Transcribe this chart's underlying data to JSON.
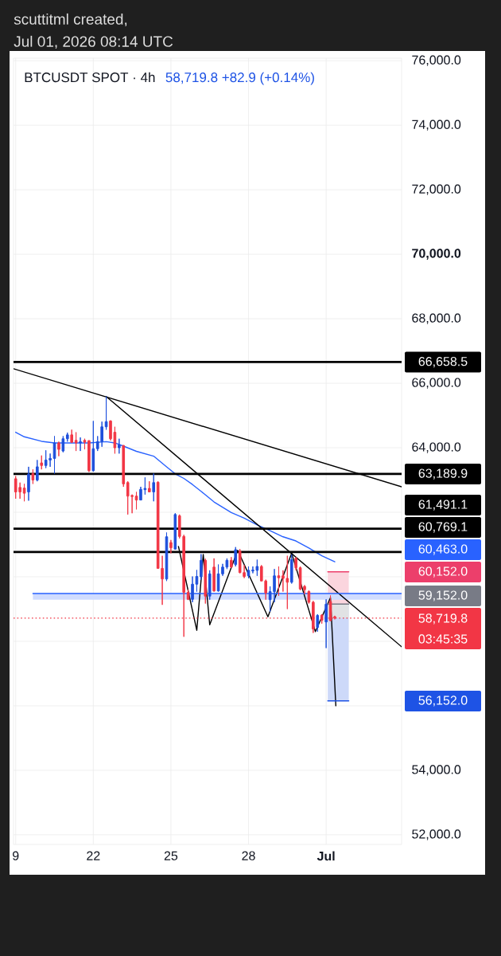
{
  "chart_data": {
    "type": "candlestick",
    "title": "BTCUSDT SPOT · 4h",
    "subtitle": "58,719.8 +82.9 (+0.14%)",
    "x": [
      "2026-06-19T00:00",
      "2026-06-19T04:00",
      "2026-06-19T08:00",
      "2026-06-19T12:00",
      "2026-06-19T16:00",
      "2026-06-19T20:00",
      "2026-06-20T00:00",
      "2026-06-20T04:00",
      "2026-06-20T08:00",
      "2026-06-20T12:00",
      "2026-06-20T16:00",
      "2026-06-20T20:00",
      "2026-06-21T00:00",
      "2026-06-21T04:00",
      "2026-06-21T08:00",
      "2026-06-21T12:00",
      "2026-06-21T16:00",
      "2026-06-21T20:00",
      "2026-06-22T00:00",
      "2026-06-22T04:00",
      "2026-06-22T08:00",
      "2026-06-22T12:00",
      "2026-06-22T16:00",
      "2026-06-22T20:00",
      "2026-06-23T00:00",
      "2026-06-23T04:00",
      "2026-06-23T08:00",
      "2026-06-23T12:00",
      "2026-06-23T16:00",
      "2026-06-23T20:00",
      "2026-06-24T00:00",
      "2026-06-24T04:00",
      "2026-06-24T08:00",
      "2026-06-24T12:00",
      "2026-06-24T16:00",
      "2026-06-24T20:00",
      "2026-06-25T00:00",
      "2026-06-25T04:00",
      "2026-06-25T08:00",
      "2026-06-25T12:00",
      "2026-06-25T16:00",
      "2026-06-25T20:00",
      "2026-06-26T00:00",
      "2026-06-26T04:00",
      "2026-06-26T08:00",
      "2026-06-26T12:00",
      "2026-06-26T16:00",
      "2026-06-26T20:00",
      "2026-06-27T00:00",
      "2026-06-27T04:00",
      "2026-06-27T08:00",
      "2026-06-27T12:00",
      "2026-06-27T16:00",
      "2026-06-27T20:00",
      "2026-06-28T00:00",
      "2026-06-28T04:00",
      "2026-06-28T08:00",
      "2026-06-28T12:00",
      "2026-06-28T16:00",
      "2026-06-28T20:00",
      "2026-06-29T00:00",
      "2026-06-29T04:00",
      "2026-06-29T08:00",
      "2026-06-29T12:00",
      "2026-06-29T16:00",
      "2026-06-29T20:00",
      "2026-06-30T00:00",
      "2026-06-30T04:00",
      "2026-06-30T08:00",
      "2026-06-30T12:00",
      "2026-06-30T16:00",
      "2026-06-30T20:00",
      "2026-07-01T00:00",
      "2026-07-01T04:00",
      "2026-07-01T08:00"
    ],
    "ohlc": [
      [
        63040,
        63120,
        62420,
        62630
      ],
      [
        62770,
        62920,
        62420,
        62630
      ],
      [
        62750,
        62880,
        62340,
        62590
      ],
      [
        62630,
        63410,
        62360,
        63180
      ],
      [
        63200,
        63330,
        62880,
        63000
      ],
      [
        63000,
        63620,
        62960,
        63410
      ],
      [
        63530,
        63760,
        63330,
        63450
      ],
      [
        63450,
        63920,
        63370,
        63620
      ],
      [
        63620,
        63820,
        63410,
        63670
      ],
      [
        63670,
        64360,
        63200,
        64150
      ],
      [
        64150,
        64190,
        63740,
        63950
      ],
      [
        63900,
        64360,
        63860,
        64280
      ],
      [
        64280,
        64470,
        64190,
        64400
      ],
      [
        64400,
        64560,
        64150,
        64170
      ],
      [
        64230,
        64480,
        63900,
        64150
      ],
      [
        64150,
        64320,
        63900,
        64190
      ],
      [
        64230,
        64280,
        63950,
        64170
      ],
      [
        64220,
        64230,
        63250,
        63290
      ],
      [
        63290,
        64830,
        63260,
        63970
      ],
      [
        63970,
        64360,
        63900,
        64190
      ],
      [
        64190,
        64810,
        64030,
        64650
      ],
      [
        64650,
        65590,
        64560,
        64810
      ],
      [
        64830,
        64850,
        64230,
        64280
      ],
      [
        64480,
        64650,
        63820,
        64000
      ],
      [
        64000,
        64280,
        63820,
        64090
      ],
      [
        64070,
        64080,
        62790,
        62880
      ],
      [
        62920,
        62960,
        61930,
        62500
      ],
      [
        62520,
        62550,
        61970,
        62490
      ],
      [
        62500,
        62630,
        62090,
        62380
      ],
      [
        62380,
        62790,
        62370,
        62710
      ],
      [
        62700,
        63080,
        62550,
        62740
      ],
      [
        62740,
        62960,
        62620,
        62630
      ],
      [
        62630,
        63200,
        62340,
        62920
      ],
      [
        62930,
        62960,
        60250,
        60260
      ],
      [
        60260,
        60650,
        59130,
        59930
      ],
      [
        59930,
        61370,
        59870,
        61240
      ],
      [
        61060,
        61140,
        60730,
        60900
      ],
      [
        60860,
        61970,
        60840,
        61930
      ],
      [
        61890,
        61930,
        61190,
        61250
      ],
      [
        61250,
        61300,
        58140,
        59520
      ],
      [
        59520,
        59600,
        59280,
        59300
      ],
      [
        59300,
        60010,
        59210,
        59770
      ],
      [
        59770,
        60210,
        59540,
        60010
      ],
      [
        60000,
        60700,
        59910,
        60510
      ],
      [
        60510,
        60560,
        59170,
        59400
      ],
      [
        59400,
        60200,
        59290,
        60090
      ],
      [
        60300,
        60570,
        59540,
        59560
      ],
      [
        59560,
        60380,
        59540,
        60090
      ],
      [
        60090,
        60400,
        60030,
        60300
      ],
      [
        60300,
        60570,
        60240,
        60510
      ],
      [
        60510,
        60610,
        60280,
        60300
      ],
      [
        60380,
        60920,
        60320,
        60840
      ],
      [
        60800,
        60860,
        60110,
        60130
      ],
      [
        60130,
        60360,
        59960,
        60010
      ],
      [
        60030,
        60320,
        59950,
        60200
      ],
      [
        60180,
        60320,
        60110,
        60210
      ],
      [
        60200,
        60530,
        60030,
        60320
      ],
      [
        60320,
        60360,
        59860,
        59870
      ],
      [
        59870,
        59910,
        59290,
        59500
      ],
      [
        59290,
        59700,
        58920,
        59540
      ],
      [
        59540,
        60240,
        59210,
        60030
      ],
      [
        60030,
        60320,
        59410,
        59970
      ],
      [
        60030,
        60200,
        59540,
        59950
      ],
      [
        59950,
        60650,
        59000,
        59830
      ],
      [
        59830,
        60690,
        59790,
        60530
      ],
      [
        60570,
        60610,
        60200,
        60280
      ],
      [
        60280,
        60320,
        59580,
        59620
      ],
      [
        59700,
        59740,
        59460,
        59600
      ],
      [
        59540,
        59580,
        59170,
        59210
      ],
      [
        59210,
        59250,
        58260,
        58380
      ],
      [
        58430,
        58840,
        58300,
        58800
      ],
      [
        58810,
        58840,
        58550,
        58650
      ],
      [
        58600,
        59300,
        57790,
        59150
      ],
      [
        59230,
        59420,
        58630,
        58640
      ],
      [
        58760,
        58790,
        58680,
        58719.8
      ]
    ],
    "colors": [
      "#f23645",
      "#f23645",
      "#f23645",
      "#1e50dc",
      "#f23645",
      "#1e50dc",
      "#f23645",
      "#1e50dc",
      "#1e50dc",
      "#1e50dc",
      "#f23645",
      "#1e50dc",
      "#1e50dc",
      "#f23645",
      "#f23645",
      "#1e50dc",
      "#f23645",
      "#f23645",
      "#1e50dc",
      "#1e50dc",
      "#1e50dc",
      "#1e50dc",
      "#f23645",
      "#f23645",
      "#1e50dc",
      "#f23645",
      "#f23645",
      "#f23645",
      "#f23645",
      "#1e50dc",
      "#1e50dc",
      "#f23645",
      "#1e50dc",
      "#f23645",
      "#f23645",
      "#1e50dc",
      "#f23645",
      "#1e50dc",
      "#f23645",
      "#f23645",
      "#f23645",
      "#1e50dc",
      "#1e50dc",
      "#1e50dc",
      "#f23645",
      "#1e50dc",
      "#f23645",
      "#1e50dc",
      "#1e50dc",
      "#1e50dc",
      "#f23645",
      "#1e50dc",
      "#f23645",
      "#f23645",
      "#1e50dc",
      "#1e50dc",
      "#1e50dc",
      "#f23645",
      "#f23645",
      "#1e50dc",
      "#1e50dc",
      "#f23645",
      "#f23645",
      "#f23645",
      "#1e50dc",
      "#f23645",
      "#f23645",
      "#f23645",
      "#f23645",
      "#f23645",
      "#1e50dc",
      "#f23645",
      "#1e50dc",
      "#f23645",
      "#f23645"
    ],
    "series": [
      {
        "type": "line",
        "color": "#2962ff",
        "x": [
          "2026-06-19T00:00",
          "2026-06-19T08:00",
          "2026-06-20T00:00",
          "2026-06-20T12:00",
          "2026-06-21T08:00",
          "2026-06-21T20:00",
          "2026-06-22T12:00",
          "2026-06-22T20:00",
          "2026-06-23T04:00",
          "2026-06-23T16:00",
          "2026-06-24T08:00",
          "2026-06-24T20:00",
          "2026-06-25T04:00",
          "2026-06-25T12:00",
          "2026-06-25T20:00",
          "2026-06-26T04:00",
          "2026-06-26T16:00",
          "2026-06-27T08:00",
          "2026-06-27T20:00",
          "2026-06-28T08:00",
          "2026-06-28T20:00",
          "2026-06-29T08:00",
          "2026-06-29T20:00",
          "2026-06-30T08:00",
          "2026-06-30T20:00",
          "2026-07-01T08:00"
        ],
        "values": [
          64480,
          64340,
          64200,
          64150,
          64150,
          64150,
          64190,
          64150,
          64050,
          63890,
          63740,
          63410,
          63190,
          63050,
          62860,
          62650,
          62320,
          61990,
          61820,
          61610,
          61430,
          61240,
          61110,
          60890,
          60650,
          60463
        ]
      },
      {
        "type": "line",
        "color": "#000000",
        "x": [
          "2026-06-18T22:00",
          "2026-07-03T22:00"
        ],
        "values": [
          66450,
          62790
        ]
      },
      {
        "type": "line",
        "color": "#000000",
        "x": [
          "2026-06-22T12:00",
          "2026-07-03T22:00"
        ],
        "values": [
          65590,
          57830
        ]
      },
      {
        "type": "line",
        "color": "#000000",
        "x": [
          "2026-06-25T07:00",
          "2026-06-26T00:00",
          "2026-06-26T06:00",
          "2026-06-26T12:00",
          "2026-06-27T14:00",
          "2026-06-28T18:00",
          "2026-06-29T16:00",
          "2026-06-30T14:00",
          "2026-07-01T04:00",
          "2026-07-01T09:00"
        ],
        "values": [
          60940,
          58340,
          60690,
          58510,
          60820,
          58760,
          60730,
          58300,
          59350,
          56000
        ]
      },
      {
        "type": "line",
        "color": "#ec3f6b",
        "x": [
          "2026-07-01T01:30",
          "2026-07-01T21:00"
        ],
        "values": [
          60152,
          60152
        ],
        "lower": [
          59152,
          59152
        ],
        "upper": [
          60152,
          60152
        ]
      },
      {
        "type": "line",
        "color": "#1e53e5",
        "x": [
          "2026-07-01T01:30",
          "2026-07-01T21:00"
        ],
        "values": [
          56152,
          56152
        ],
        "lower": [
          56152,
          56152
        ],
        "upper": [
          59152,
          59152
        ]
      },
      {
        "type": "line",
        "color": "#787b86",
        "x": [
          "2026-07-01T01:30",
          "2026-07-01T21:00"
        ],
        "values": [
          59152,
          59152
        ],
        "lower": [
          58719.8,
          58719.8
        ],
        "upper": [
          59152,
          59152
        ]
      },
      {
        "type": "line",
        "color": "#2962ff",
        "x": [
          "2026-06-19T16:00",
          "2026-07-03T22:00"
        ],
        "values": [
          59480,
          59480
        ],
        "lower": [
          59290,
          59290
        ],
        "upper": [
          59480,
          59480
        ]
      }
    ],
    "ref_lines": [
      {
        "axis": "y",
        "value": 66658.5,
        "label": "66,658.5",
        "color": "#000000"
      },
      {
        "axis": "y",
        "value": 63189.9,
        "label": "63,189.9",
        "color": "#000000"
      },
      {
        "axis": "y",
        "value": 61491.1,
        "label": "61,491.1",
        "color": "#000000"
      },
      {
        "axis": "y",
        "value": 60769.1,
        "label": "60,769.1",
        "color": "#000000"
      },
      {
        "axis": "y",
        "value": 58719.8,
        "label": "58,719.8",
        "color": "#f23645",
        "line_style": "dotted"
      }
    ],
    "annotations": [
      "scuttitml created,",
      "Jul 01, 2026 08:14 UTC",
      "03:45:35",
      "60,463.0",
      "60,152.0",
      "59,152.0",
      "56,152.0"
    ],
    "xlim": [
      "2026-06-18T22:00",
      "2026-07-03T22:00"
    ],
    "xticks": [
      {
        "value": "2026-06-19",
        "label": "9"
      },
      {
        "value": "2026-06-22",
        "label": "22"
      },
      {
        "value": "2026-06-25",
        "label": "25"
      },
      {
        "value": "2026-06-28",
        "label": "28"
      },
      {
        "value": "2026-07-01",
        "label": "**Jul**"
      }
    ],
    "ylim": [
      51700,
      76080
    ],
    "yticks": [
      {
        "value": 52000,
        "label": "52,000.0"
      },
      {
        "value": 54000,
        "label": "54,000.0"
      },
      {
        "value": 56000,
        "label": null
      },
      {
        "value": 58000,
        "label": null
      },
      {
        "value": 60000,
        "label": null
      },
      {
        "value": 62000,
        "label": null
      },
      {
        "value": 64000,
        "label": "64,000.0"
      },
      {
        "value": 66000,
        "label": "66,000.0"
      },
      {
        "value": 68000,
        "label": "68,000.0"
      },
      {
        "value": 70000,
        "label": "**70,000.0**"
      },
      {
        "value": 72000,
        "label": "72,000.0"
      },
      {
        "value": 74000,
        "label": "74,000.0"
      },
      {
        "value": 76000,
        "label": "76,000.0"
      }
    ],
    "grid": true
  }
}
